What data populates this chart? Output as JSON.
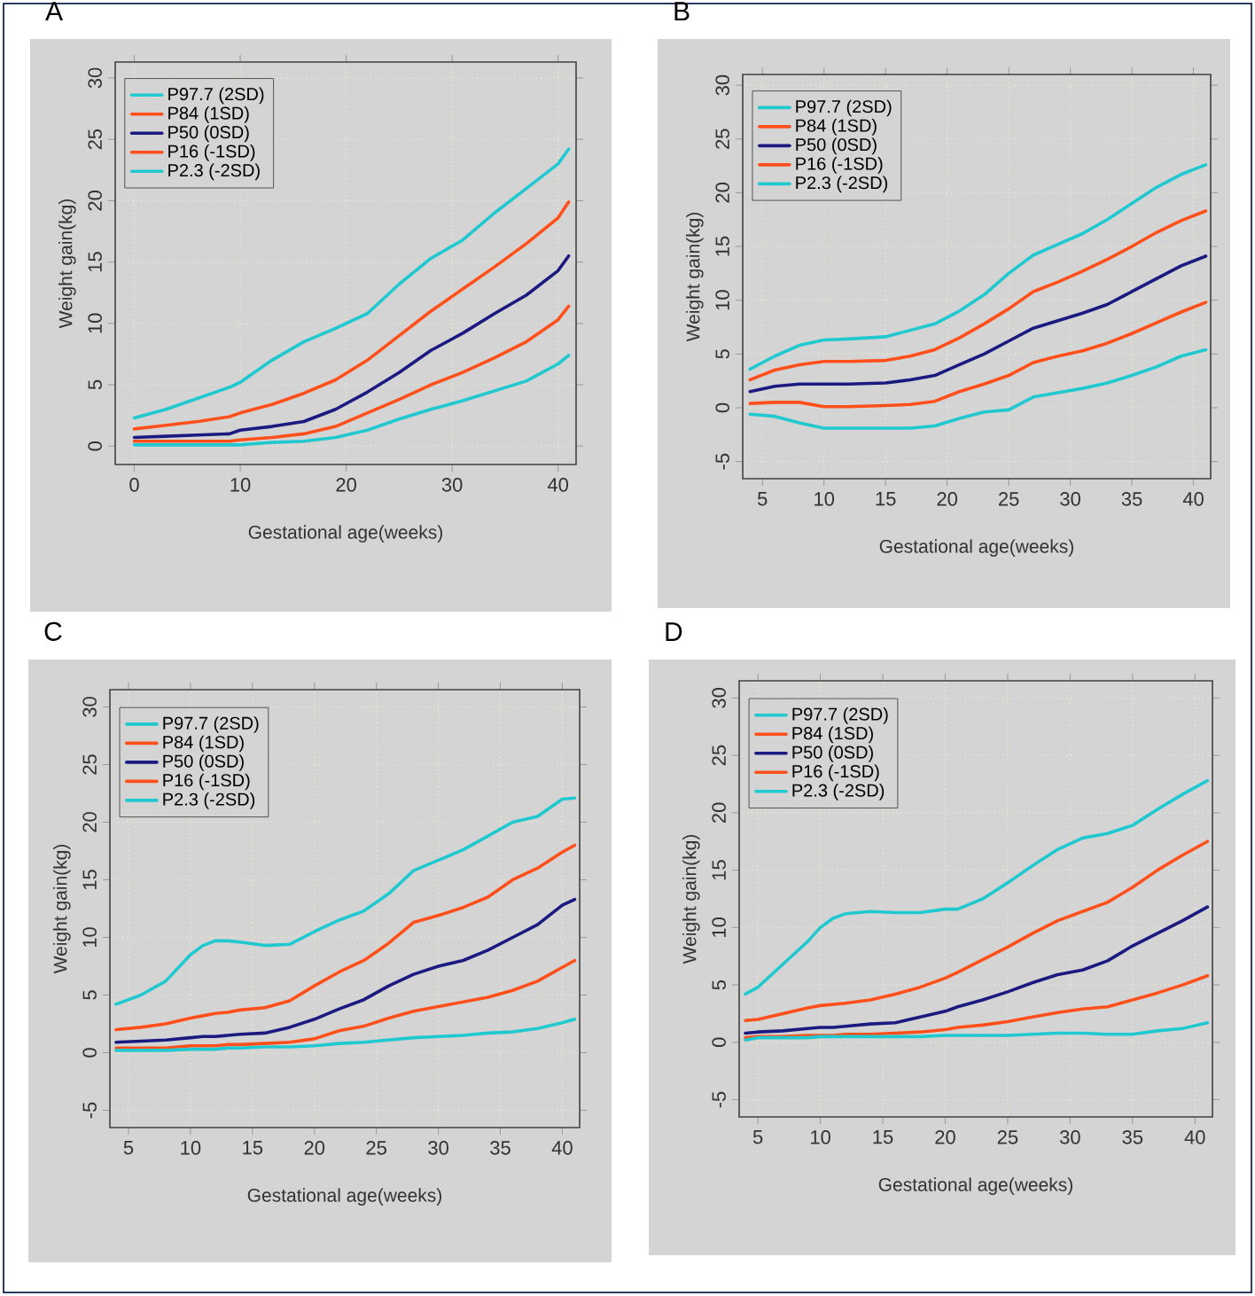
{
  "chart_data": [
    {
      "type": "line",
      "title": "A",
      "xlabel": "Gestational age(weeks)",
      "ylabel": "Weight gain(kg)",
      "x": [
        0,
        3,
        6,
        9,
        10,
        13,
        16,
        19,
        22,
        25,
        28,
        31,
        34,
        37,
        40,
        41
      ],
      "xlim": [
        -1.8,
        41.7
      ],
      "ylim": [
        -1.5,
        31.3
      ],
      "xticks": [
        0,
        10,
        20,
        30,
        40
      ],
      "yticks": [
        0,
        5,
        10,
        15,
        20,
        25,
        30
      ],
      "grid": true,
      "legend": "top left",
      "series": [
        {
          "name": "P97.7 (2SD)",
          "color": "#20c8d0",
          "values": [
            2.3,
            3.0,
            3.9,
            4.8,
            5.2,
            7.0,
            8.5,
            9.6,
            10.8,
            13.2,
            15.3,
            16.8,
            19.0,
            21.0,
            23.0,
            24.2
          ]
        },
        {
          "name": "P84 (1SD)",
          "color": "#ff4f1a",
          "values": [
            1.4,
            1.7,
            2.0,
            2.4,
            2.7,
            3.4,
            4.3,
            5.4,
            7.0,
            9.0,
            11.0,
            12.8,
            14.6,
            16.5,
            18.6,
            19.9
          ]
        },
        {
          "name": "P50 (0SD)",
          "color": "#1a1a80",
          "values": [
            0.7,
            0.8,
            0.9,
            1.0,
            1.3,
            1.6,
            2.0,
            3.0,
            4.4,
            6.0,
            7.8,
            9.2,
            10.8,
            12.3,
            14.3,
            15.5
          ]
        },
        {
          "name": "P16 (-1SD)",
          "color": "#ff4f1a",
          "values": [
            0.4,
            0.4,
            0.4,
            0.4,
            0.5,
            0.7,
            1.0,
            1.6,
            2.7,
            3.8,
            5.0,
            6.0,
            7.2,
            8.5,
            10.3,
            11.4
          ]
        },
        {
          "name": "P2.3 (-2SD)",
          "color": "#20c8d0",
          "values": [
            0.1,
            0.1,
            0.1,
            0.1,
            0.1,
            0.3,
            0.4,
            0.7,
            1.3,
            2.2,
            3.0,
            3.7,
            4.5,
            5.3,
            6.7,
            7.4
          ]
        }
      ]
    },
    {
      "type": "line",
      "title": "B",
      "xlabel": "Gestational age(weeks)",
      "ylabel": "Weight gain(kg)",
      "x": [
        4,
        6,
        8,
        10,
        12,
        15,
        17,
        19,
        21,
        23,
        25,
        27,
        29,
        31,
        33,
        35,
        37,
        39,
        41
      ],
      "xlim": [
        3.4,
        41.4
      ],
      "ylim": [
        -6.6,
        31
      ],
      "xticks": [
        5,
        10,
        15,
        20,
        25,
        30,
        35,
        40
      ],
      "yticks": [
        -5,
        0,
        5,
        10,
        15,
        20,
        25,
        30
      ],
      "grid": true,
      "legend": "top left",
      "series": [
        {
          "name": "P97.7 (2SD)",
          "color": "#20c8d0",
          "values": [
            3.6,
            4.8,
            5.8,
            6.3,
            6.4,
            6.6,
            7.2,
            7.8,
            9.0,
            10.5,
            12.5,
            14.2,
            15.2,
            16.2,
            17.5,
            19.0,
            20.5,
            21.7,
            22.6
          ]
        },
        {
          "name": "P84 (1SD)",
          "color": "#ff4f1a",
          "values": [
            2.6,
            3.5,
            4.0,
            4.3,
            4.3,
            4.4,
            4.8,
            5.4,
            6.5,
            7.8,
            9.2,
            10.8,
            11.7,
            12.7,
            13.8,
            15.0,
            16.3,
            17.4,
            18.3
          ]
        },
        {
          "name": "P50 (0SD)",
          "color": "#1a1a80",
          "values": [
            1.5,
            2.0,
            2.2,
            2.2,
            2.2,
            2.3,
            2.6,
            3.0,
            4.0,
            5.0,
            6.2,
            7.4,
            8.1,
            8.8,
            9.6,
            10.8,
            12.0,
            13.2,
            14.1
          ]
        },
        {
          "name": "P16 (-1SD)",
          "color": "#ff4f1a",
          "values": [
            0.4,
            0.5,
            0.5,
            0.1,
            0.1,
            0.2,
            0.3,
            0.6,
            1.5,
            2.2,
            3.0,
            4.2,
            4.8,
            5.3,
            6.0,
            6.9,
            7.9,
            8.9,
            9.8
          ]
        },
        {
          "name": "P2.3 (-2SD)",
          "color": "#20c8d0",
          "values": [
            -0.6,
            -0.8,
            -1.4,
            -1.9,
            -1.9,
            -1.9,
            -1.9,
            -1.7,
            -1.0,
            -0.4,
            -0.2,
            1.0,
            1.4,
            1.8,
            2.3,
            3.0,
            3.8,
            4.8,
            5.4
          ]
        }
      ]
    },
    {
      "type": "line",
      "title": "C",
      "xlabel": "Gestational age(weeks)",
      "ylabel": "Weight gain(kg)",
      "x": [
        4,
        6,
        8,
        10,
        11,
        12,
        13,
        14,
        16,
        18,
        20,
        22,
        24,
        26,
        28,
        30,
        32,
        34,
        36,
        38,
        40,
        41
      ],
      "xlim": [
        3.5,
        41.4
      ],
      "ylim": [
        -6.5,
        31.5
      ],
      "xticks": [
        5,
        10,
        15,
        20,
        25,
        30,
        35,
        40
      ],
      "yticks": [
        -5,
        0,
        5,
        10,
        15,
        20,
        25,
        30
      ],
      "grid": true,
      "legend": "top left",
      "series": [
        {
          "name": "P97.7 (2SD)",
          "color": "#20c8d0",
          "values": [
            4.2,
            5.0,
            6.2,
            8.5,
            9.3,
            9.7,
            9.7,
            9.6,
            9.3,
            9.4,
            10.5,
            11.5,
            12.3,
            13.8,
            15.8,
            16.7,
            17.6,
            18.8,
            20.0,
            20.5,
            22.0,
            22.1
          ]
        },
        {
          "name": "P84 (1SD)",
          "color": "#ff4f1a",
          "values": [
            2.0,
            2.2,
            2.5,
            3.0,
            3.2,
            3.4,
            3.5,
            3.7,
            3.9,
            4.5,
            5.8,
            7.0,
            8.0,
            9.5,
            11.3,
            11.9,
            12.6,
            13.5,
            15.0,
            16.0,
            17.4,
            18.0
          ]
        },
        {
          "name": "P50 (0SD)",
          "color": "#1a1a80",
          "values": [
            0.9,
            1.0,
            1.1,
            1.3,
            1.4,
            1.4,
            1.5,
            1.6,
            1.7,
            2.2,
            2.9,
            3.8,
            4.6,
            5.8,
            6.8,
            7.5,
            8.0,
            8.9,
            10.0,
            11.1,
            12.8,
            13.3
          ]
        },
        {
          "name": "P16 (-1SD)",
          "color": "#ff4f1a",
          "values": [
            0.4,
            0.4,
            0.4,
            0.6,
            0.6,
            0.6,
            0.7,
            0.7,
            0.8,
            0.9,
            1.2,
            1.9,
            2.3,
            3.0,
            3.6,
            4.0,
            4.4,
            4.8,
            5.4,
            6.2,
            7.4,
            8.0
          ]
        },
        {
          "name": "P2.3 (-2SD)",
          "color": "#20c8d0",
          "values": [
            0.2,
            0.2,
            0.2,
            0.3,
            0.3,
            0.3,
            0.4,
            0.4,
            0.5,
            0.5,
            0.6,
            0.8,
            0.9,
            1.1,
            1.3,
            1.4,
            1.5,
            1.7,
            1.8,
            2.1,
            2.6,
            2.9
          ]
        }
      ]
    },
    {
      "type": "line",
      "title": "D",
      "xlabel": "Gestational age(weeks)",
      "ylabel": "Weight gain(kg)",
      "x": [
        4,
        5,
        7,
        9,
        10,
        11,
        12,
        14,
        16,
        18,
        20,
        21,
        23,
        25,
        27,
        29,
        31,
        33,
        35,
        37,
        39,
        41
      ],
      "xlim": [
        3.5,
        41.4
      ],
      "ylim": [
        -6.5,
        31.5
      ],
      "xticks": [
        5,
        10,
        15,
        20,
        25,
        30,
        35,
        40
      ],
      "yticks": [
        -5,
        0,
        5,
        10,
        15,
        20,
        25,
        30
      ],
      "grid": true,
      "legend": "top left",
      "series": [
        {
          "name": "P97.7 (2SD)",
          "color": "#20c8d0",
          "values": [
            4.2,
            4.8,
            6.8,
            8.8,
            10.0,
            10.8,
            11.2,
            11.4,
            11.3,
            11.3,
            11.6,
            11.6,
            12.5,
            13.9,
            15.4,
            16.8,
            17.8,
            18.2,
            18.9,
            20.3,
            21.6,
            22.8
          ]
        },
        {
          "name": "P84 (1SD)",
          "color": "#ff4f1a",
          "values": [
            1.9,
            2.0,
            2.5,
            3.0,
            3.2,
            3.3,
            3.4,
            3.7,
            4.2,
            4.8,
            5.6,
            6.1,
            7.2,
            8.3,
            9.5,
            10.6,
            11.4,
            12.2,
            13.5,
            15.0,
            16.3,
            17.5
          ]
        },
        {
          "name": "P50 (0SD)",
          "color": "#1a1a80",
          "values": [
            0.8,
            0.9,
            1.0,
            1.2,
            1.3,
            1.3,
            1.4,
            1.6,
            1.7,
            2.2,
            2.7,
            3.1,
            3.7,
            4.4,
            5.2,
            5.9,
            6.3,
            7.1,
            8.4,
            9.5,
            10.6,
            11.8
          ]
        },
        {
          "name": "P16 (-1SD)",
          "color": "#ff4f1a",
          "values": [
            0.4,
            0.5,
            0.5,
            0.6,
            0.6,
            0.6,
            0.7,
            0.7,
            0.8,
            0.9,
            1.1,
            1.3,
            1.5,
            1.8,
            2.2,
            2.6,
            2.9,
            3.1,
            3.7,
            4.3,
            5.0,
            5.8
          ]
        },
        {
          "name": "P2.3 (-2SD)",
          "color": "#20c8d0",
          "values": [
            0.2,
            0.4,
            0.4,
            0.4,
            0.5,
            0.5,
            0.5,
            0.5,
            0.5,
            0.5,
            0.6,
            0.6,
            0.6,
            0.6,
            0.7,
            0.8,
            0.8,
            0.7,
            0.7,
            1.0,
            1.2,
            1.7
          ]
        }
      ]
    }
  ]
}
